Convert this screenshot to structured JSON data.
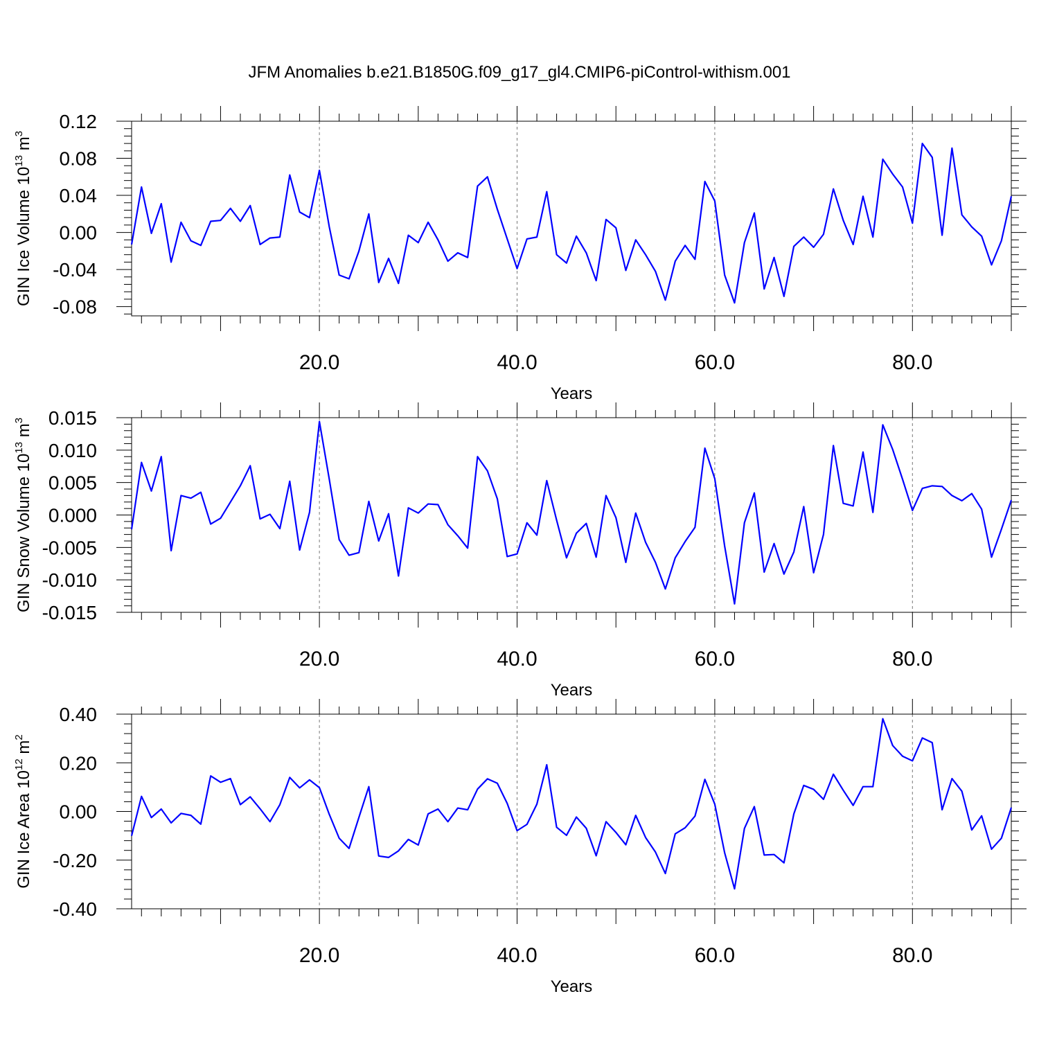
{
  "title": "JFM Anomalies b.e21.B1850G.f09_g17_gl4.CMIP6-piControl-withism.001",
  "line_color": "#0000ff",
  "chart_data": [
    {
      "type": "line",
      "ylabel": "GIN Ice Volume 10",
      "ylabel_exp": "13",
      "ylabel_unit": " m",
      "ylabel_unit_exp": "3",
      "xlabel": "Years",
      "xlim": [
        1,
        90
      ],
      "ylim": [
        -0.09,
        0.12
      ],
      "yticks": [
        0.12,
        0.08,
        0.04,
        0.0,
        -0.04,
        -0.08
      ],
      "ytick_labels": [
        "0.12",
        "0.08",
        "0.04",
        "0.00",
        "-0.04",
        "-0.08"
      ],
      "xticks": [
        20,
        40,
        60,
        80
      ],
      "xtick_labels": [
        "20.0",
        "40.0",
        "60.0",
        "80.0"
      ],
      "grid": "vertical dashed at major x ticks",
      "x_start": 1,
      "values": [
        -0.013,
        0.049,
        -0.001,
        0.031,
        -0.032,
        0.011,
        -0.009,
        -0.014,
        0.012,
        0.013,
        0.026,
        0.012,
        0.029,
        -0.013,
        -0.006,
        -0.005,
        0.062,
        0.022,
        0.016,
        0.067,
        0.006,
        -0.046,
        -0.05,
        -0.02,
        0.02,
        -0.054,
        -0.028,
        -0.055,
        -0.003,
        -0.011,
        0.011,
        -0.008,
        -0.031,
        -0.022,
        -0.027,
        0.05,
        0.06,
        0.025,
        -0.007,
        -0.039,
        -0.007,
        -0.005,
        0.044,
        -0.024,
        -0.033,
        -0.004,
        -0.022,
        -0.052,
        0.014,
        0.005,
        -0.041,
        -0.008,
        -0.024,
        -0.042,
        -0.073,
        -0.031,
        -0.014,
        -0.029,
        0.055,
        0.034,
        -0.046,
        -0.076,
        -0.011,
        0.021,
        -0.061,
        -0.027,
        -0.069,
        -0.015,
        -0.005,
        -0.016,
        -0.002,
        0.047,
        0.013,
        -0.013,
        0.039,
        -0.005,
        0.079,
        0.063,
        0.049,
        0.01,
        0.096,
        0.081,
        -0.003,
        0.091,
        0.019,
        0.006,
        -0.004,
        -0.035,
        -0.009,
        0.039
      ]
    },
    {
      "type": "line",
      "ylabel": "GIN Snow Volume 10",
      "ylabel_exp": "13",
      "ylabel_unit": " m",
      "ylabel_unit_exp": "3",
      "xlabel": "Years",
      "xlim": [
        1,
        90
      ],
      "ylim": [
        -0.015,
        0.015
      ],
      "yticks": [
        0.015,
        0.01,
        0.005,
        0.0,
        -0.005,
        -0.01,
        -0.015
      ],
      "ytick_labels": [
        "0.015",
        "0.010",
        "0.005",
        "0.000",
        "-0.005",
        "-0.010",
        "-0.015"
      ],
      "xticks": [
        20,
        40,
        60,
        80
      ],
      "xtick_labels": [
        "20.0",
        "40.0",
        "60.0",
        "80.0"
      ],
      "grid": "vertical dashed at major x ticks",
      "x_start": 1,
      "values": [
        -0.0022,
        0.0081,
        0.0037,
        0.009,
        -0.0055,
        0.003,
        0.0026,
        0.0035,
        -0.0014,
        -0.0005,
        0.002,
        0.0045,
        0.0076,
        -0.0006,
        0.0001,
        -0.0021,
        0.0052,
        -0.0054,
        0.0004,
        0.0144,
        0.0055,
        -0.0038,
        -0.0062,
        -0.0058,
        0.0021,
        -0.004,
        0.0002,
        -0.0094,
        0.0011,
        0.0003,
        0.0017,
        0.0016,
        -0.0015,
        -0.0032,
        -0.0051,
        0.009,
        0.0068,
        0.0025,
        -0.0064,
        -0.006,
        -0.0012,
        -0.0031,
        0.0053,
        -0.0008,
        -0.0066,
        -0.0028,
        -0.0013,
        -0.0065,
        0.003,
        -0.0004,
        -0.0073,
        0.0003,
        -0.0042,
        -0.0073,
        -0.0114,
        -0.0066,
        -0.0041,
        -0.0019,
        0.0103,
        0.0056,
        -0.0048,
        -0.0137,
        -0.0012,
        0.0034,
        -0.0088,
        -0.0044,
        -0.0091,
        -0.0057,
        0.0013,
        -0.0089,
        -0.003,
        0.0107,
        0.0018,
        0.0014,
        0.0097,
        0.0004,
        0.0139,
        0.0101,
        0.0055,
        0.0007,
        0.0041,
        0.0045,
        0.0044,
        0.003,
        0.0022,
        0.0033,
        0.0009,
        -0.0065,
        -0.0022,
        0.0023
      ]
    },
    {
      "type": "line",
      "ylabel": "GIN Ice Area 10",
      "ylabel_exp": "12",
      "ylabel_unit": " m",
      "ylabel_unit_exp": "2",
      "xlabel": "Years",
      "xlim": [
        1,
        90
      ],
      "ylim": [
        -0.4,
        0.4
      ],
      "yticks": [
        0.4,
        0.2,
        0.0,
        -0.2,
        -0.4
      ],
      "ytick_labels": [
        "0.40",
        "0.20",
        "0.00",
        "-0.20",
        "-0.40"
      ],
      "xticks": [
        20,
        40,
        60,
        80
      ],
      "xtick_labels": [
        "20.0",
        "40.0",
        "60.0",
        "80.0"
      ],
      "grid": "vertical dashed at major x ticks",
      "x_start": 1,
      "values": [
        -0.1,
        0.062,
        -0.025,
        0.01,
        -0.047,
        -0.008,
        -0.016,
        -0.052,
        0.146,
        0.12,
        0.135,
        0.028,
        0.06,
        0.011,
        -0.042,
        0.028,
        0.14,
        0.097,
        0.13,
        0.098,
        -0.012,
        -0.11,
        -0.152,
        -0.024,
        0.102,
        -0.183,
        -0.189,
        -0.162,
        -0.115,
        -0.138,
        -0.01,
        0.01,
        -0.042,
        0.014,
        0.007,
        0.092,
        0.134,
        0.116,
        0.033,
        -0.079,
        -0.053,
        0.03,
        0.192,
        -0.065,
        -0.098,
        -0.023,
        -0.069,
        -0.182,
        -0.042,
        -0.086,
        -0.137,
        -0.016,
        -0.107,
        -0.167,
        -0.255,
        -0.092,
        -0.067,
        -0.019,
        0.132,
        0.03,
        -0.17,
        -0.318,
        -0.07,
        0.02,
        -0.179,
        -0.177,
        -0.211,
        -0.01,
        0.107,
        0.091,
        0.05,
        0.153,
        0.087,
        0.025,
        0.102,
        0.102,
        0.381,
        0.271,
        0.227,
        0.208,
        0.302,
        0.283,
        0.007,
        0.135,
        0.083,
        -0.076,
        -0.018,
        -0.155,
        -0.11,
        0.016
      ]
    }
  ]
}
